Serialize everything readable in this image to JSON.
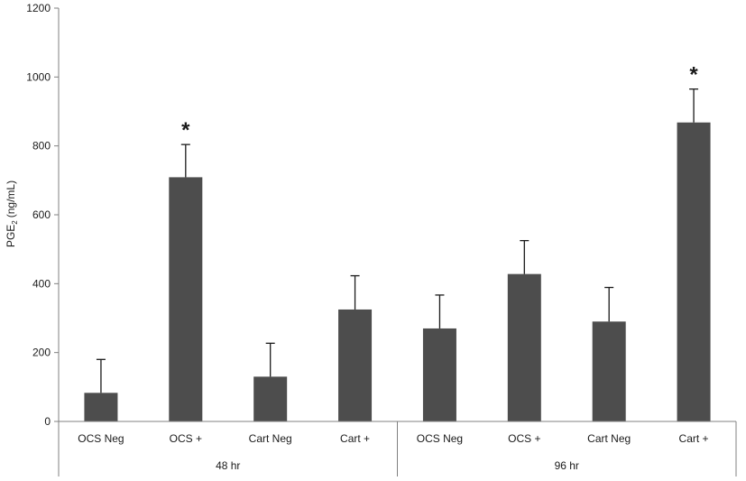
{
  "chart_data": {
    "type": "bar",
    "ylabel": "PGE",
    "ylabel_sub": "2",
    "ylabel_unit": "(ng/mL)",
    "ylim": [
      0,
      1200
    ],
    "yticks": [
      0,
      200,
      400,
      600,
      800,
      1000,
      1200
    ],
    "grid": false,
    "bar_color": "#4d4d4d",
    "groups": [
      {
        "label": "48 hr",
        "categories": [
          "OCS Neg",
          "OCS +",
          "Cart Neg",
          "Cart +"
        ]
      },
      {
        "label": "96 hr",
        "categories": [
          "OCS Neg",
          "OCS +",
          "Cart Neg",
          "Cart +"
        ]
      }
    ],
    "values": [
      83,
      709,
      130,
      325,
      270,
      428,
      290,
      868
    ],
    "errors": [
      97,
      95,
      97,
      98,
      97,
      97,
      99,
      97
    ],
    "annotations": [
      "",
      "*",
      "",
      "",
      "",
      "",
      "",
      "*"
    ]
  }
}
